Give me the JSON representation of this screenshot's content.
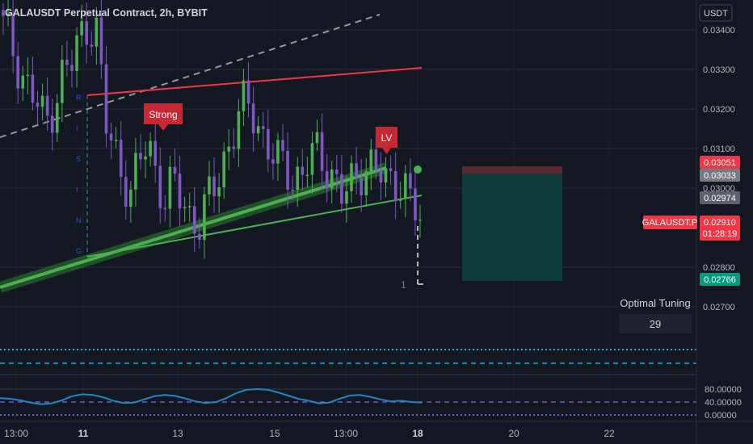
{
  "header": {
    "title": "GALAUSDT Perpetual Contract, 2h, BYBIT"
  },
  "price_axis": {
    "currency_button": "USDT",
    "ticks": [
      "0.03400",
      "0.03300",
      "0.03200",
      "0.03100",
      "0.03000",
      "0.02800",
      "0.02700"
    ]
  },
  "price_labels": {
    "target_top": "0.03051",
    "target_mid": "0.03033",
    "entry": "0.02974",
    "symbol": "GALAUSDT.P",
    "last": "0.02910",
    "countdown": "01:28:19",
    "stop": "0.02766"
  },
  "optimal_tuning": {
    "label": "Optimal Tuning",
    "value": "29"
  },
  "osc_axis": {
    "ticks": [
      "80.00000",
      "40.00000",
      "0.00000"
    ]
  },
  "time_axis": {
    "ticks": [
      "13:00",
      "11",
      "13",
      "15",
      "13:00",
      "18",
      "20",
      "22"
    ]
  },
  "annotations": {
    "strong": "Strong",
    "lv": "LV",
    "count": "1",
    "vletters": [
      "R",
      "I",
      "S",
      "I",
      "N",
      "G"
    ]
  },
  "colors": {
    "up": "#4caf50",
    "down": "#7e57c2",
    "resistance": "#f23645",
    "support": "#4caf50",
    "oscillator": "#00bcd4",
    "box": "#0f3b3a",
    "red_label": "#f23645",
    "green_label": "#089981"
  },
  "chart_data": {
    "type": "candlestick",
    "x_ticks": [
      "13:00",
      "11",
      "13",
      "15",
      "13:00",
      "18",
      "20",
      "22"
    ],
    "ylim": [
      0.0265,
      0.0348
    ],
    "y_ticks": [
      0.034,
      0.033,
      0.032,
      0.031,
      0.03,
      0.028,
      0.027
    ],
    "price_close": [
      0.0341,
      0.0336,
      0.033,
      0.0325,
      0.0321,
      0.0316,
      0.0322,
      0.0329,
      0.0331,
      0.0338,
      0.0342,
      0.034,
      0.0316,
      0.031,
      0.0304,
      0.0299,
      0.0306,
      0.0312,
      0.0304,
      0.0297,
      0.0301,
      0.0297,
      0.0293,
      0.0291,
      0.0296,
      0.0301,
      0.0308,
      0.0314,
      0.032,
      0.0321,
      0.0316,
      0.0311,
      0.0306,
      0.0306,
      0.0303,
      0.0303,
      0.0307,
      0.0309,
      0.0306,
      0.0302,
      0.0297,
      0.0301,
      0.0305,
      0.0306,
      0.0304,
      0.0301,
      0.0303,
      0.0301,
      0.0296,
      0.0291
    ],
    "last_price": 0.0291,
    "entry": 0.02974,
    "target": 0.03051,
    "target_2": 0.03033,
    "stop": 0.02766,
    "oscillator": {
      "ylim": [
        -5,
        110
      ],
      "ticks": [
        80,
        40,
        0
      ],
      "values": [
        52,
        50,
        45,
        38,
        33,
        36,
        45,
        58,
        64,
        62,
        55,
        44,
        37,
        38,
        48,
        58,
        62,
        59,
        51,
        42,
        37,
        40,
        52,
        68,
        78,
        80,
        78,
        70,
        60,
        50,
        44,
        36,
        38,
        50,
        60,
        62,
        56,
        48,
        42,
        44,
        40,
        38
      ]
    }
  }
}
